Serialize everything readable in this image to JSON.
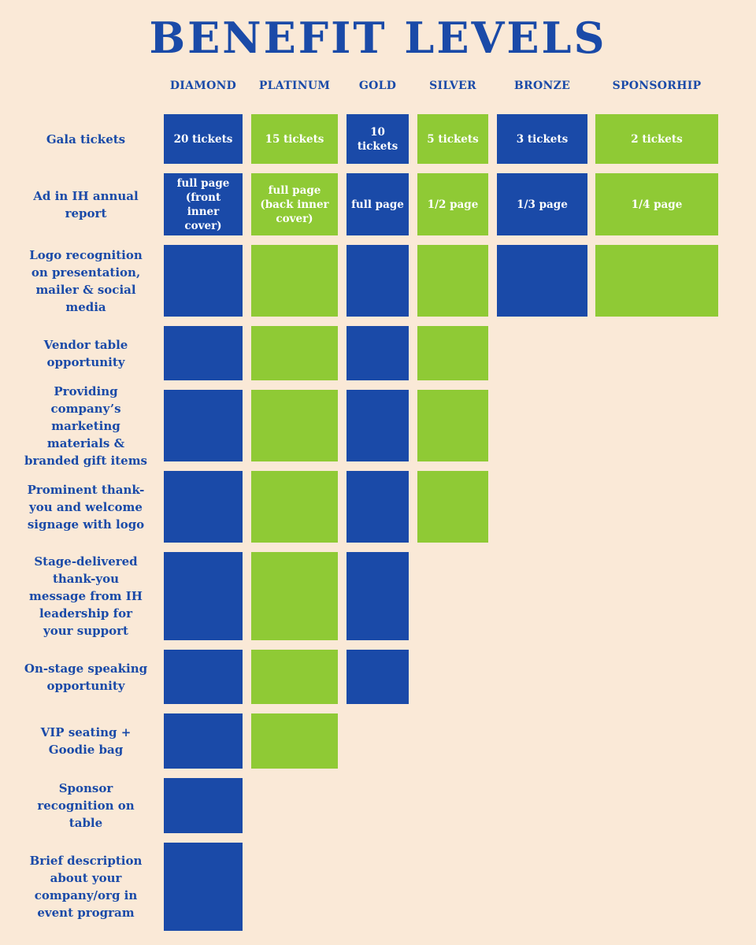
{
  "title": "BENEFIT LEVELS",
  "colors": {
    "background": "#fae9d7",
    "blue": "#1a4aa8",
    "green": "#8fca35"
  },
  "levels": [
    "DIAMOND",
    "PLATINUM",
    "GOLD",
    "SILVER",
    "BRONZE",
    "SPONSORHIP"
  ],
  "benefits": [
    {
      "label": "Gala tickets",
      "values": [
        "20 tickets",
        "15 tickets",
        "10 tickets",
        "5 tickets",
        "3 tickets",
        "2 tickets"
      ]
    },
    {
      "label": "Ad in IH annual report",
      "values": [
        "full page (front inner cover)",
        "full page (back inner cover)",
        "full page",
        "1/2 page",
        "1/3 page",
        "1/4 page"
      ]
    },
    {
      "label": "Logo recognition on presentation, mailer & social media",
      "values": [
        "",
        "",
        "",
        "",
        "",
        ""
      ]
    },
    {
      "label": "Vendor table opportunity",
      "values": [
        "",
        "",
        "",
        ""
      ]
    },
    {
      "label": "Providing company’s marketing materials & branded gift items",
      "values": [
        "",
        "",
        "",
        ""
      ]
    },
    {
      "label": "Prominent thank-you and welcome signage with logo",
      "values": [
        "",
        "",
        "",
        ""
      ]
    },
    {
      "label": "Stage-delivered thank-you message from IH leadership for your support",
      "values": [
        "",
        "",
        ""
      ]
    },
    {
      "label": "On-stage speaking opportunity",
      "values": [
        "",
        "",
        ""
      ]
    },
    {
      "label": "VIP seating + Goodie bag",
      "values": [
        "",
        ""
      ]
    },
    {
      "label": "Sponsor recognition on table",
      "values": [
        ""
      ]
    },
    {
      "label": "Brief description about your company/org in event program",
      "values": [
        ""
      ]
    }
  ]
}
